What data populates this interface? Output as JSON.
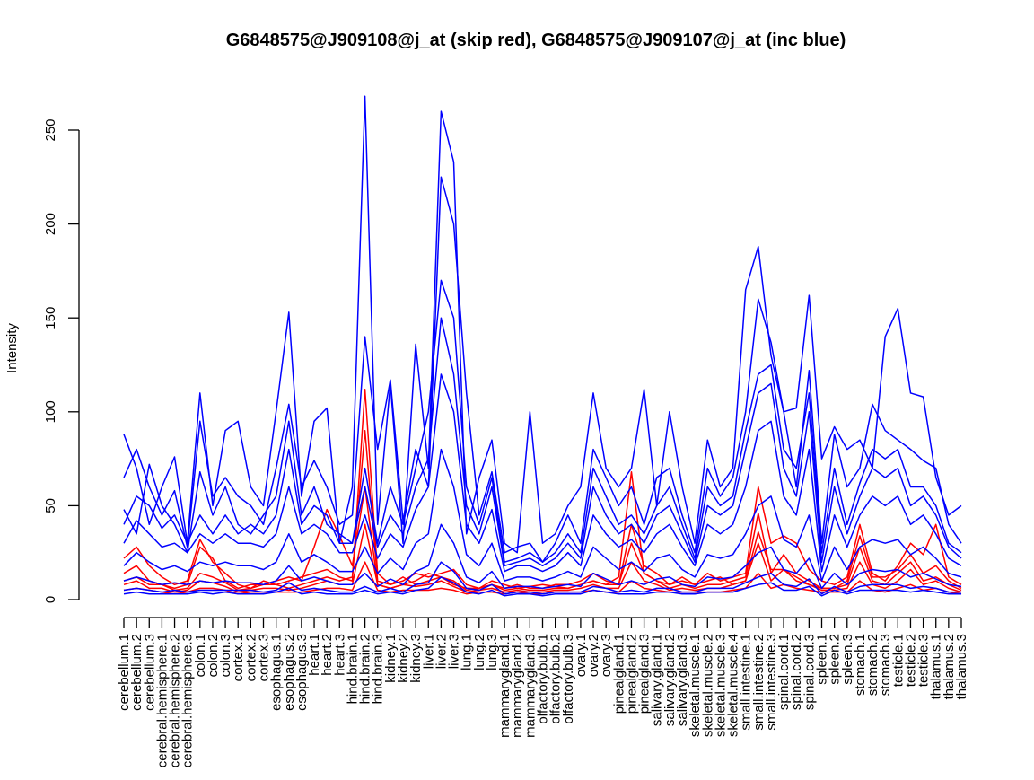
{
  "chart_data": {
    "type": "line",
    "title": "G6848575@J909108@j_at (skip red), G6848575@J909107@j_at (inc blue)",
    "xlabel": "",
    "ylabel": "Intensity",
    "ylim": [
      0,
      260
    ],
    "yticks": [
      0,
      50,
      100,
      150,
      200,
      250
    ],
    "categories": [
      "cerebellum.1",
      "cerebellum.2",
      "cerebellum.3",
      "cerebral.hemisphere.1",
      "cerebral.hemisphere.2",
      "cerebral.hemisphere.3",
      "colon.1",
      "colon.2",
      "colon.3",
      "cortex.1",
      "cortex.2",
      "cortex.3",
      "esophagus.1",
      "esophagus.2",
      "esophagus.3",
      "heart.1",
      "heart.2",
      "heart.3",
      "hind.brain.1",
      "hind.brain.2",
      "hind.brain.3",
      "kidney.1",
      "kidney.2",
      "kidney.3",
      "liver.1",
      "liver.2",
      "liver.3",
      "lung.1",
      "lung.2",
      "lung.3",
      "mammarygland.1",
      "mammarygland.2",
      "mammarygland.3",
      "olfactory.bulb.1",
      "olfactory.bulb.2",
      "olfactory.bulb.3",
      "ovary.1",
      "ovary.2",
      "ovary.3",
      "pinealgland.1",
      "pinealgland.2",
      "pinealgland.3",
      "salivary.gland.1",
      "salivary.gland.2",
      "salivary.gland.3",
      "skeletal.muscle.1",
      "skeletal.muscle.2",
      "skeletal.muscle.3",
      "skeletal.muscle.4",
      "small.intestine.1",
      "small.intestine.2",
      "small.intestine.3",
      "spinal.cord.1",
      "spinal.cord.2",
      "spinal.cord.3",
      "spleen.1",
      "spleen.2",
      "spleen.3",
      "stomach.1",
      "stomach.2",
      "stomach.3",
      "testicle.1",
      "testicle.2",
      "testicle.3",
      "thalamus.1",
      "thalamus.2",
      "thalamus.3"
    ],
    "series_colors": {
      "skip": "#ff0000",
      "inc": "#0000ff"
    },
    "series": [
      {
        "group": "skip",
        "values": [
          22,
          28,
          18,
          12,
          8,
          10,
          32,
          20,
          14,
          8,
          6,
          10,
          8,
          10,
          12,
          14,
          16,
          12,
          10,
          112,
          14,
          8,
          10,
          14,
          12,
          14,
          16,
          8,
          6,
          10,
          8,
          6,
          7,
          8,
          7,
          6,
          8,
          10,
          8,
          12,
          68,
          14,
          10,
          8,
          12,
          8,
          14,
          10,
          12,
          14,
          60,
          30,
          34,
          30,
          16,
          10,
          8,
          12,
          40,
          14,
          10,
          18,
          30,
          24,
          40,
          12,
          8
        ]
      },
      {
        "group": "skip",
        "values": [
          14,
          18,
          10,
          8,
          6,
          8,
          28,
          22,
          10,
          6,
          8,
          8,
          10,
          12,
          10,
          28,
          48,
          34,
          18,
          60,
          8,
          6,
          8,
          10,
          14,
          12,
          8,
          6,
          6,
          8,
          6,
          8,
          6,
          6,
          8,
          8,
          10,
          14,
          10,
          8,
          40,
          18,
          14,
          8,
          10,
          8,
          10,
          12,
          8,
          10,
          36,
          16,
          16,
          12,
          8,
          6,
          6,
          10,
          34,
          12,
          12,
          16,
          24,
          14,
          18,
          10,
          6
        ]
      },
      {
        "group": "skip",
        "values": [
          10,
          12,
          8,
          8,
          5,
          6,
          14,
          12,
          9,
          5,
          6,
          8,
          8,
          6,
          8,
          10,
          12,
          10,
          12,
          90,
          10,
          8,
          12,
          8,
          10,
          12,
          10,
          5,
          6,
          8,
          5,
          6,
          5,
          5,
          6,
          6,
          8,
          10,
          8,
          8,
          30,
          14,
          10,
          6,
          8,
          6,
          8,
          8,
          10,
          12,
          46,
          14,
          24,
          14,
          10,
          6,
          6,
          8,
          28,
          10,
          8,
          14,
          20,
          10,
          12,
          8,
          5
        ]
      },
      {
        "group": "skip",
        "values": [
          8,
          10,
          6,
          6,
          4,
          5,
          10,
          9,
          7,
          4,
          5,
          6,
          6,
          5,
          6,
          8,
          10,
          8,
          8,
          40,
          8,
          6,
          8,
          7,
          8,
          10,
          7,
          4,
          5,
          6,
          4,
          5,
          4,
          4,
          5,
          5,
          6,
          8,
          6,
          6,
          20,
          10,
          8,
          5,
          6,
          5,
          6,
          6,
          8,
          10,
          30,
          10,
          16,
          10,
          8,
          5,
          5,
          6,
          20,
          8,
          6,
          10,
          16,
          8,
          10,
          6,
          4
        ]
      },
      {
        "group": "skip",
        "values": [
          5,
          6,
          5,
          4,
          3,
          4,
          6,
          6,
          5,
          3,
          4,
          4,
          4,
          4,
          4,
          5,
          6,
          6,
          5,
          20,
          5,
          4,
          5,
          5,
          5,
          6,
          5,
          3,
          4,
          4,
          3,
          4,
          3,
          3,
          4,
          4,
          4,
          5,
          4,
          4,
          10,
          6,
          5,
          4,
          4,
          4,
          4,
          4,
          5,
          6,
          14,
          6,
          8,
          6,
          5,
          4,
          4,
          4,
          10,
          5,
          4,
          6,
          8,
          5,
          6,
          4,
          3
        ]
      },
      {
        "group": "inc",
        "values": [
          88,
          70,
          40,
          60,
          76,
          30,
          110,
          50,
          90,
          95,
          60,
          50,
          100,
          153,
          55,
          95,
          102,
          30,
          60,
          268,
          40,
          115,
          30,
          136,
          70,
          260,
          233,
          35,
          65,
          85,
          30,
          25,
          100,
          30,
          35,
          50,
          60,
          110,
          70,
          60,
          70,
          112,
          50,
          100,
          60,
          30,
          85,
          60,
          70,
          165,
          188,
          130,
          100,
          102,
          162,
          75,
          92,
          80,
          85,
          70,
          140,
          155,
          110,
          108,
          65,
          45,
          50
        ]
      },
      {
        "group": "inc",
        "values": [
          65,
          80,
          60,
          45,
          58,
          28,
          95,
          55,
          65,
          55,
          50,
          40,
          70,
          104,
          60,
          74,
          60,
          40,
          45,
          140,
          80,
          117,
          42,
          80,
          60,
          225,
          200,
          110,
          45,
          68,
          25,
          28,
          30,
          20,
          30,
          45,
          30,
          80,
          65,
          50,
          60,
          40,
          65,
          70,
          45,
          25,
          70,
          55,
          65,
          100,
          160,
          137,
          100,
          60,
          122,
          30,
          88,
          60,
          70,
          104,
          90,
          85,
          80,
          74,
          70,
          40,
          30
        ]
      },
      {
        "group": "inc",
        "values": [
          48,
          35,
          72,
          50,
          40,
          25,
          68,
          45,
          60,
          40,
          35,
          45,
          55,
          95,
          45,
          60,
          40,
          35,
          30,
          70,
          30,
          60,
          40,
          70,
          100,
          170,
          150,
          60,
          40,
          65,
          20,
          22,
          25,
          20,
          25,
          35,
          25,
          70,
          55,
          40,
          45,
          35,
          50,
          60,
          40,
          22,
          60,
          50,
          55,
          90,
          120,
          125,
          80,
          70,
          110,
          25,
          70,
          40,
          62,
          80,
          75,
          80,
          60,
          60,
          50,
          30,
          25
        ]
      },
      {
        "group": "inc",
        "values": [
          40,
          55,
          50,
          38,
          45,
          30,
          45,
          35,
          45,
          35,
          40,
          35,
          45,
          80,
          40,
          50,
          45,
          30,
          30,
          60,
          28,
          45,
          35,
          60,
          75,
          150,
          120,
          50,
          35,
          60,
          18,
          20,
          22,
          18,
          22,
          30,
          22,
          60,
          45,
          35,
          40,
          30,
          45,
          50,
          35,
          20,
          50,
          45,
          50,
          80,
          110,
          115,
          70,
          55,
          100,
          20,
          60,
          35,
          55,
          70,
          65,
          70,
          50,
          55,
          45,
          28,
          22
        ]
      },
      {
        "group": "inc",
        "values": [
          30,
          42,
          35,
          28,
          30,
          25,
          35,
          30,
          35,
          30,
          30,
          28,
          35,
          60,
          35,
          40,
          35,
          25,
          25,
          45,
          22,
          35,
          28,
          48,
          60,
          120,
          100,
          40,
          30,
          48,
          15,
          18,
          18,
          15,
          18,
          25,
          18,
          45,
          35,
          28,
          32,
          25,
          35,
          40,
          28,
          18,
          40,
          35,
          40,
          60,
          90,
          95,
          55,
          45,
          80,
          15,
          45,
          28,
          45,
          55,
          50,
          55,
          40,
          45,
          35,
          22,
          18
        ]
      },
      {
        "group": "inc",
        "values": [
          18,
          25,
          20,
          16,
          18,
          15,
          20,
          18,
          20,
          18,
          18,
          16,
          20,
          35,
          20,
          24,
          20,
          15,
          15,
          28,
          14,
          22,
          16,
          30,
          35,
          80,
          60,
          24,
          18,
          30,
          10,
          12,
          12,
          10,
          12,
          15,
          12,
          28,
          22,
          16,
          20,
          15,
          22,
          24,
          16,
          12,
          24,
          22,
          24,
          35,
          50,
          55,
          32,
          28,
          45,
          10,
          28,
          16,
          28,
          32,
          30,
          32,
          24,
          28,
          22,
          14,
          12
        ]
      },
      {
        "group": "inc",
        "values": [
          10,
          12,
          10,
          8,
          9,
          8,
          10,
          9,
          10,
          9,
          9,
          8,
          10,
          18,
          10,
          12,
          10,
          8,
          8,
          14,
          7,
          11,
          8,
          15,
          18,
          40,
          30,
          12,
          9,
          15,
          6,
          7,
          7,
          6,
          7,
          8,
          7,
          14,
          11,
          8,
          10,
          8,
          11,
          12,
          8,
          7,
          12,
          11,
          12,
          18,
          25,
          28,
          16,
          14,
          22,
          6,
          14,
          8,
          14,
          16,
          15,
          16,
          12,
          14,
          11,
          8,
          7
        ]
      },
      {
        "group": "inc",
        "values": [
          5,
          6,
          5,
          4,
          5,
          4,
          5,
          5,
          5,
          5,
          5,
          4,
          5,
          9,
          5,
          6,
          5,
          4,
          4,
          7,
          4,
          6,
          4,
          8,
          9,
          20,
          15,
          6,
          5,
          8,
          3,
          4,
          4,
          3,
          4,
          4,
          4,
          7,
          6,
          4,
          5,
          4,
          6,
          6,
          4,
          4,
          6,
          6,
          6,
          9,
          12,
          14,
          8,
          7,
          11,
          3,
          7,
          4,
          7,
          8,
          8,
          8,
          6,
          7,
          6,
          4,
          4
        ]
      },
      {
        "group": "inc",
        "values": [
          3,
          4,
          3,
          3,
          3,
          3,
          4,
          3,
          4,
          3,
          3,
          3,
          4,
          6,
          3,
          4,
          3,
          3,
          3,
          5,
          3,
          4,
          3,
          5,
          6,
          12,
          9,
          4,
          3,
          5,
          2,
          3,
          3,
          2,
          3,
          3,
          3,
          5,
          4,
          3,
          3,
          3,
          4,
          4,
          3,
          3,
          4,
          4,
          4,
          6,
          8,
          9,
          5,
          5,
          7,
          2,
          5,
          3,
          5,
          5,
          5,
          5,
          4,
          5,
          4,
          3,
          3
        ]
      }
    ]
  }
}
